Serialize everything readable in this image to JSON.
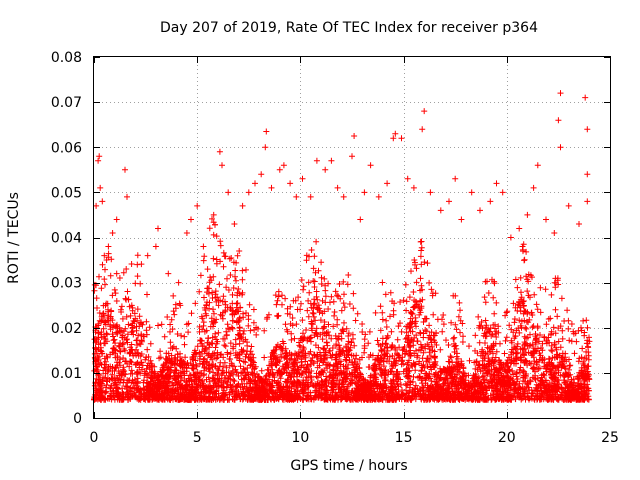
{
  "chart_data": {
    "type": "scatter",
    "title": "Day 207 of 2019, Rate Of TEC Index for receiver p364",
    "xlabel": "GPS time / hours",
    "ylabel": "ROTI / TECUs",
    "xlim": [
      0,
      25
    ],
    "ylim": [
      0,
      0.08
    ],
    "xticks": [
      0,
      5,
      10,
      15,
      20,
      25
    ],
    "xtick_labels": [
      "0",
      "5",
      "10",
      "15",
      "20",
      "25"
    ],
    "yticks": [
      0,
      0.01,
      0.02,
      0.03,
      0.04,
      0.05,
      0.06,
      0.07,
      0.08
    ],
    "ytick_labels": [
      "0",
      "0.01",
      "0.02",
      "0.03",
      "0.04",
      "0.05",
      "0.06",
      "0.07",
      "0.08"
    ],
    "grid": true,
    "marker": "+",
    "color": "#ff0000",
    "series": [
      {
        "name": "ROTI",
        "description_points": "sampled points",
        "points": [
          [
            0.1,
            0.047
          ],
          [
            0.2,
            0.057
          ],
          [
            0.25,
            0.058
          ],
          [
            0.3,
            0.051
          ],
          [
            0.4,
            0.048
          ],
          [
            0.5,
            0.036
          ],
          [
            0.7,
            0.038
          ],
          [
            0.9,
            0.041
          ],
          [
            1.1,
            0.044
          ],
          [
            1.5,
            0.055
          ],
          [
            1.6,
            0.049
          ],
          [
            2.1,
            0.034
          ],
          [
            2.6,
            0.036
          ],
          [
            3.0,
            0.038
          ],
          [
            3.1,
            0.042
          ],
          [
            3.6,
            0.032
          ],
          [
            4.1,
            0.03
          ],
          [
            4.5,
            0.041
          ],
          [
            4.7,
            0.044
          ],
          [
            5.0,
            0.047
          ],
          [
            5.3,
            0.038
          ],
          [
            5.8,
            0.045
          ],
          [
            6.1,
            0.059
          ],
          [
            6.2,
            0.056
          ],
          [
            6.5,
            0.05
          ],
          [
            6.8,
            0.043
          ],
          [
            7.2,
            0.047
          ],
          [
            7.5,
            0.05
          ],
          [
            7.8,
            0.052
          ],
          [
            8.1,
            0.054
          ],
          [
            8.3,
            0.06
          ],
          [
            8.35,
            0.0635
          ],
          [
            8.6,
            0.051
          ],
          [
            9.0,
            0.055
          ],
          [
            9.2,
            0.056
          ],
          [
            9.5,
            0.052
          ],
          [
            9.8,
            0.049
          ],
          [
            10.1,
            0.053
          ],
          [
            10.5,
            0.049
          ],
          [
            10.8,
            0.057
          ],
          [
            11.2,
            0.055
          ],
          [
            11.5,
            0.057
          ],
          [
            11.8,
            0.051
          ],
          [
            12.1,
            0.049
          ],
          [
            12.5,
            0.058
          ],
          [
            12.6,
            0.0625
          ],
          [
            12.9,
            0.044
          ],
          [
            13.1,
            0.05
          ],
          [
            13.4,
            0.056
          ],
          [
            13.8,
            0.049
          ],
          [
            14.2,
            0.052
          ],
          [
            14.5,
            0.062
          ],
          [
            14.6,
            0.063
          ],
          [
            14.9,
            0.062
          ],
          [
            15.2,
            0.053
          ],
          [
            15.5,
            0.051
          ],
          [
            15.9,
            0.064
          ],
          [
            16.0,
            0.068
          ],
          [
            16.3,
            0.05
          ],
          [
            16.8,
            0.046
          ],
          [
            17.2,
            0.048
          ],
          [
            17.5,
            0.053
          ],
          [
            17.8,
            0.044
          ],
          [
            18.3,
            0.05
          ],
          [
            18.7,
            0.046
          ],
          [
            19.2,
            0.048
          ],
          [
            19.5,
            0.052
          ],
          [
            19.8,
            0.05
          ],
          [
            20.2,
            0.04
          ],
          [
            20.6,
            0.042
          ],
          [
            21.0,
            0.045
          ],
          [
            21.3,
            0.051
          ],
          [
            21.5,
            0.056
          ],
          [
            21.9,
            0.044
          ],
          [
            22.3,
            0.041
          ],
          [
            22.5,
            0.066
          ],
          [
            22.6,
            0.06
          ],
          [
            22.6,
            0.072
          ],
          [
            23.0,
            0.047
          ],
          [
            23.5,
            0.043
          ],
          [
            23.8,
            0.071
          ],
          [
            23.9,
            0.064
          ],
          [
            23.9,
            0.054
          ],
          [
            23.9,
            0.048
          ]
        ]
      }
    ]
  }
}
